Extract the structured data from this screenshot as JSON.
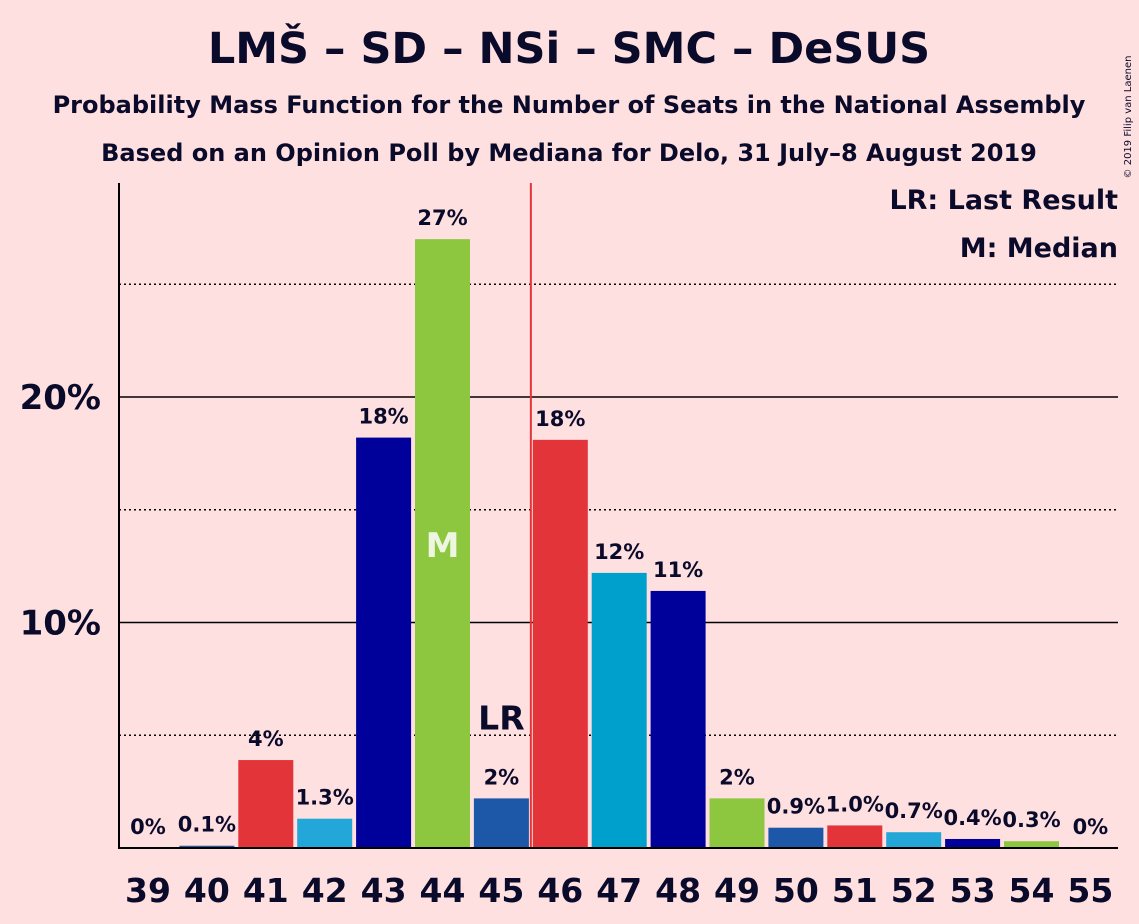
{
  "chart_data": {
    "type": "bar",
    "title": "LMŠ – SD – NSi – SMC – DeSUS",
    "subtitle": "Probability Mass Function for the Number of Seats in the National Assembly",
    "subtitle2": "Based on an Opinion Poll by Mediana for Delo, 31 July–8 August 2019",
    "copyright": "© 2019 Filip van Laenen",
    "legend": {
      "lr": "LR: Last Result",
      "median": "M: Median",
      "placement": "top-right"
    },
    "categories": [
      "39",
      "40",
      "41",
      "42",
      "43",
      "44",
      "45",
      "46",
      "47",
      "48",
      "49",
      "50",
      "51",
      "52",
      "53",
      "54",
      "55"
    ],
    "values": [
      0,
      0.1,
      3.9,
      1.3,
      18.2,
      27.0,
      2.2,
      18.1,
      12.2,
      11.4,
      2.2,
      0.9,
      1.0,
      0.7,
      0.4,
      0.3,
      0
    ],
    "labels": [
      "0%",
      "0.1%",
      "4%",
      "1.3%",
      "18%",
      "27%",
      "2%",
      "18%",
      "12%",
      "11%",
      "2%",
      "0.9%",
      "1.0%",
      "0.7%",
      "0.4%",
      "0.3%",
      "0%"
    ],
    "bar_colors": [
      "#23a6d8",
      "#1c57a8",
      "#e3343a",
      "#23a6d8",
      "#00009a",
      "#8dc63f",
      "#1c57a8",
      "#e3343a",
      "#00a0cc",
      "#00009a",
      "#8dc63f",
      "#1c57a8",
      "#e3343a",
      "#23a6d8",
      "#00009a",
      "#8dc63f",
      "#1c57a8"
    ],
    "median_index": 5,
    "median_label": "M",
    "last_result_index": 6,
    "last_result_label": "LR",
    "majority_line_after_index": 6,
    "majority_line_color": "#e3343a",
    "yticks": [
      {
        "value": 10,
        "label": "10%"
      },
      {
        "value": 20,
        "label": "20%"
      }
    ],
    "dotted_gridlines": [
      5,
      15,
      25
    ],
    "ylim": [
      0,
      29.5
    ],
    "grid": true
  }
}
